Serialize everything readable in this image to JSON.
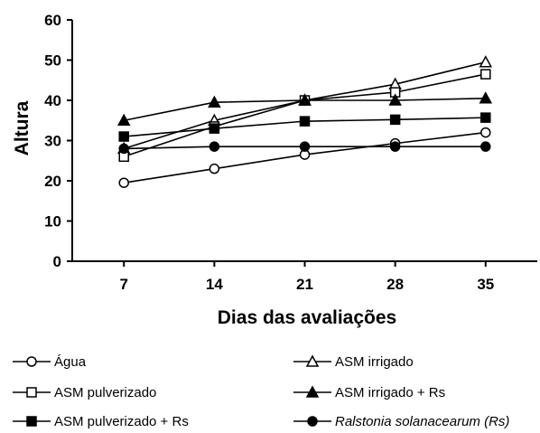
{
  "chart_data": {
    "type": "line",
    "title": "",
    "xlabel": "Dias das avaliações",
    "ylabel": "Altura",
    "x": [
      7,
      14,
      21,
      28,
      35
    ],
    "xlim": [
      3,
      39
    ],
    "ylim": [
      0,
      60
    ],
    "yticks": [
      0,
      10,
      20,
      30,
      40,
      50,
      60
    ],
    "grid": false,
    "legend_position": "bottom",
    "series": [
      {
        "name": "Água",
        "marker": "circle",
        "fill": "open",
        "values": [
          19.5,
          23,
          26.5,
          29.3,
          32
        ]
      },
      {
        "name": "ASM irrigado",
        "marker": "triangle",
        "fill": "open",
        "values": [
          28,
          35,
          40,
          44,
          49.5
        ]
      },
      {
        "name": "ASM pulverizado",
        "marker": "square",
        "fill": "open",
        "values": [
          26,
          33.5,
          40,
          42,
          46.5
        ]
      },
      {
        "name": "ASM irrigado + Rs",
        "marker": "triangle",
        "fill": "filled",
        "values": [
          35,
          39.5,
          40,
          40,
          40.5
        ]
      },
      {
        "name": "ASM pulverizado + Rs",
        "marker": "square",
        "fill": "filled",
        "values": [
          31,
          33,
          34.8,
          35.2,
          35.7
        ]
      },
      {
        "name": "Ralstonia solanacearum (Rs)",
        "marker": "circle",
        "fill": "filled",
        "values": [
          28,
          28.5,
          28.5,
          28.5,
          28.5
        ]
      }
    ]
  },
  "legend": {
    "items": [
      {
        "label": "Água"
      },
      {
        "label": "ASM irrigado"
      },
      {
        "label": "ASM pulverizado"
      },
      {
        "label": "ASM irrigado + Rs"
      },
      {
        "label": "ASM pulverizado + Rs"
      },
      {
        "label": "Ralstonia solanacearum (Rs)"
      }
    ]
  }
}
